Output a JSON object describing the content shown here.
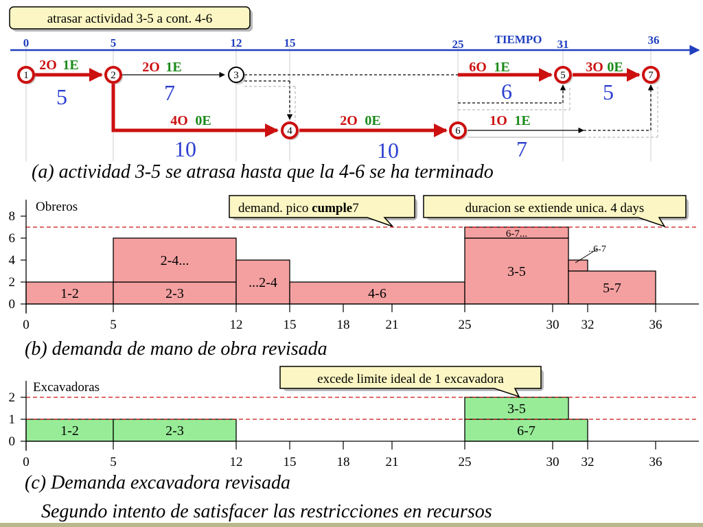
{
  "title_callout": "atrasar actividad 3-5 a cont. 4-6",
  "timeline": {
    "label": "TIEMPO",
    "ticks": [
      "0",
      "5",
      "12",
      "15",
      "25",
      "31",
      "36"
    ]
  },
  "nodes": [
    "1",
    "2",
    "3",
    "4",
    "5",
    "6",
    "7"
  ],
  "activities": [
    {
      "id": "1-2",
      "workers": "2O",
      "excavators": "1E",
      "duration": "5"
    },
    {
      "id": "2-3",
      "workers": "2O",
      "excavators": "1E",
      "duration": "7"
    },
    {
      "id": "2-4",
      "workers": "4O",
      "excavators": "0E",
      "duration": "10"
    },
    {
      "id": "4-6",
      "workers": "2O",
      "excavators": "0E",
      "duration": "10"
    },
    {
      "id": "3-5",
      "workers": "6O",
      "excavators": "1E",
      "duration": "6"
    },
    {
      "id": "6-7",
      "workers": "1O",
      "excavators": "1E",
      "duration": "7"
    },
    {
      "id": "5-7",
      "workers": "3O",
      "excavators": "0E",
      "duration": "5"
    }
  ],
  "caption_a": "(a) actividad 3-5 se atrasa hasta que la 4-6 se ha terminado",
  "chart_workers": {
    "ylabel": "Obreros",
    "yticks": [
      "0",
      "2",
      "4",
      "6",
      "8"
    ],
    "xticks": [
      "0",
      "5",
      "12",
      "15",
      "18",
      "21",
      "25",
      "30",
      "32",
      "36"
    ],
    "callout_peak_prefix": "demand. pico ",
    "callout_peak_bold": "cumple",
    "callout_peak_suffix": "7",
    "callout_duration": "duracion se extiende unica. 4 days",
    "bars": [
      {
        "label": "1-2",
        "start": 0,
        "end": 5,
        "bottom": 0,
        "top": 2
      },
      {
        "label": "2-3",
        "start": 5,
        "end": 12,
        "bottom": 0,
        "top": 2
      },
      {
        "label": "2-4...",
        "start": 5,
        "end": 12,
        "bottom": 2,
        "top": 6
      },
      {
        "label": "...2-4",
        "start": 12,
        "end": 15,
        "bottom": 0,
        "top": 4
      },
      {
        "label": "4-6",
        "start": 15,
        "end": 25,
        "bottom": 0,
        "top": 2
      },
      {
        "label": "3-5",
        "start": 25,
        "end": 31,
        "bottom": 0,
        "top": 6
      },
      {
        "label": "6-7...",
        "start": 25,
        "end": 31,
        "bottom": 6,
        "top": 7
      },
      {
        "label": "..6-7",
        "start": 31,
        "end": 32,
        "bottom": 3,
        "top": 4
      },
      {
        "label": "5-7",
        "start": 31,
        "end": 36,
        "bottom": 0,
        "top": 3
      }
    ],
    "limit": 7
  },
  "caption_b": "(b) demanda de mano de obra revisada",
  "chart_excavators": {
    "ylabel": "Excavadoras",
    "yticks": [
      "0",
      "1",
      "2"
    ],
    "xticks": [
      "0",
      "5",
      "12",
      "15",
      "18",
      "21",
      "25",
      "30",
      "32",
      "36"
    ],
    "callout": "excede limite ideal de 1 excavadora",
    "bars": [
      {
        "label": "1-2",
        "start": 0,
        "end": 5,
        "bottom": 0,
        "top": 1
      },
      {
        "label": "2-3",
        "start": 5,
        "end": 12,
        "bottom": 0,
        "top": 1
      },
      {
        "label": "6-7",
        "start": 25,
        "end": 32,
        "bottom": 0,
        "top": 1
      },
      {
        "label": "3-5",
        "start": 25,
        "end": 31,
        "bottom": 1,
        "top": 2
      }
    ],
    "limit_ideal": 1,
    "limit_max": 2
  },
  "caption_c": "(c) Demanda excavadora revisada",
  "footer_title": "Segundo intento de satisfacer las restricciones en recursos",
  "colors": {
    "red": "#cc1010",
    "green": "#1a8a1a",
    "blue": "#1f3fbf",
    "worker_bar": "#f4a0a0",
    "excavator_bar": "#98ec98",
    "callout_fill": "#fbf6c3"
  }
}
